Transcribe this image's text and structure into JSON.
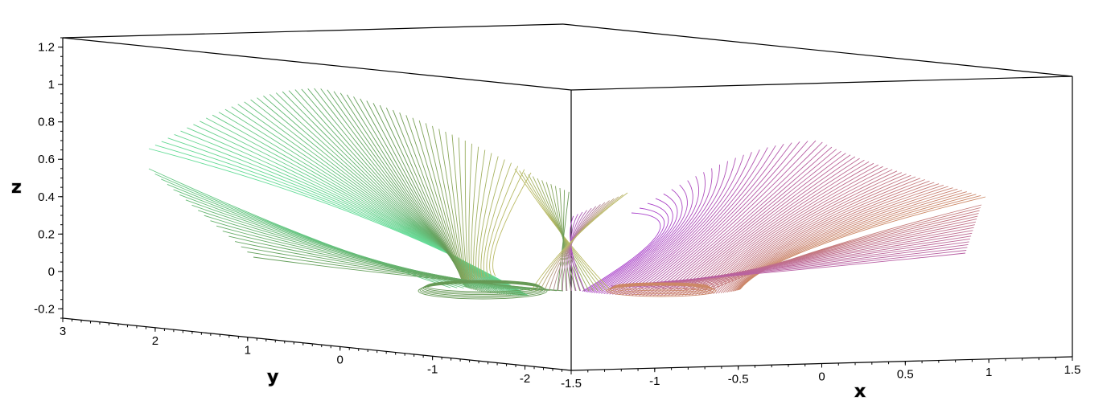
{
  "chart_data": {
    "type": "surface-3d",
    "render": "curve-family (wireframe lines)",
    "xlabel": "x",
    "ylabel": "y",
    "zlabel": "z",
    "xlim": [
      -1.5,
      1.5
    ],
    "ylim": [
      -2.5,
      3
    ],
    "zlim": [
      -0.25,
      1.25
    ],
    "x_ticks": [
      "-1.5",
      "-1",
      "-0.5",
      "0",
      "0.5",
      "1",
      "1.5"
    ],
    "y_ticks": [
      "3",
      "2",
      "1",
      "0",
      "-1",
      "-2"
    ],
    "z_ticks": [
      "1.2",
      "1",
      "0.8",
      "0.6",
      "0.4",
      "0.2",
      "0",
      "-0.2"
    ],
    "color_scheme": {
      "green_lobe_start": "#66dd99",
      "green_lobe_end": "#669955",
      "purple_lobe_start": "#aa44cc",
      "purple_lobe_end": "#cc8866",
      "mid_band": "#bbbb66"
    },
    "curve_families": [
      {
        "lobe": "green",
        "peak_z": 1.0,
        "peak_near": {
          "x": -1.5,
          "y": 1.0
        },
        "curve_count": 70
      },
      {
        "lobe": "purple",
        "peak_z": 0.7,
        "peak_near": {
          "x": 0.0,
          "y": 0.0
        },
        "curve_count": 70
      }
    ],
    "min_z": -0.15,
    "grid": false
  }
}
